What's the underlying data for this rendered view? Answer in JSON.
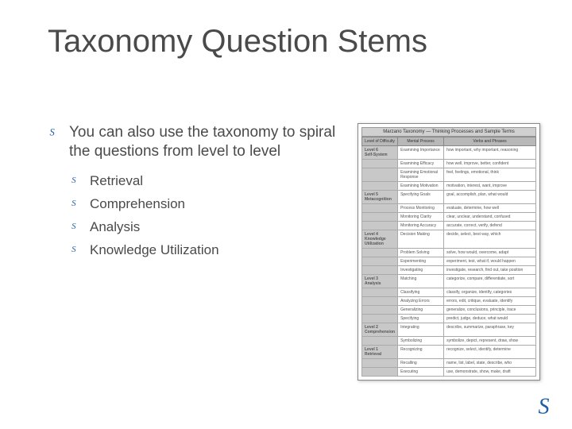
{
  "title": "Taxonomy Question Stems",
  "main_bullet": "You can also use the taxonomy to spiral the questions from level to level",
  "sub_bullets": [
    "Retrieval",
    "Comprehension",
    "Analysis",
    "Knowledge Utilization"
  ],
  "bullet_glyph": "S",
  "bullet_color": "#1d5ea8",
  "bullet_main_size": 15,
  "bullet_sub_size": 13,
  "text_color": "#4a4a4a",
  "title_fontsize": 40,
  "body_fontsize": 19,
  "sub_fontsize": 17,
  "background_color": "#ffffff",
  "chart": {
    "title": "Marzano Taxonomy — Thinking Processes and Sample Terms",
    "columns": [
      "Level of Difficulty",
      "Mental Process",
      "Verbs and Phrases"
    ],
    "rows": [
      {
        "level": "Level 6\nSelf-System",
        "proc": "Examining Importance",
        "verbs": "how important, why important, reasoning"
      },
      {
        "level": "",
        "proc": "Examining Efficacy",
        "verbs": "how well, improve, better, confident"
      },
      {
        "level": "",
        "proc": "Examining Emotional Response",
        "verbs": "feel, feelings, emotional, think"
      },
      {
        "level": "",
        "proc": "Examining Motivation",
        "verbs": "motivation, interest, want, improve"
      },
      {
        "level": "Level 5\nMetacognition",
        "proc": "Specifying Goals",
        "verbs": "goal, accomplish, plan, what would"
      },
      {
        "level": "",
        "proc": "Process Monitoring",
        "verbs": "evaluate, determine, how well"
      },
      {
        "level": "",
        "proc": "Monitoring Clarity",
        "verbs": "clear, unclear, understand, confused"
      },
      {
        "level": "",
        "proc": "Monitoring Accuracy",
        "verbs": "accurate, correct, verify, defend"
      },
      {
        "level": "Level 4\nKnowledge Utilization",
        "proc": "Decision Making",
        "verbs": "decide, select, best way, which"
      },
      {
        "level": "",
        "proc": "Problem Solving",
        "verbs": "solve, how would, overcome, adapt"
      },
      {
        "level": "",
        "proc": "Experimenting",
        "verbs": "experiment, test, what if, would happen"
      },
      {
        "level": "",
        "proc": "Investigating",
        "verbs": "investigate, research, find out, take position"
      },
      {
        "level": "Level 3\nAnalysis",
        "proc": "Matching",
        "verbs": "categorize, compare, differentiate, sort"
      },
      {
        "level": "",
        "proc": "Classifying",
        "verbs": "classify, organize, identify, categories"
      },
      {
        "level": "",
        "proc": "Analyzing Errors",
        "verbs": "errors, edit, critique, evaluate, identify"
      },
      {
        "level": "",
        "proc": "Generalizing",
        "verbs": "generalize, conclusions, principle, trace"
      },
      {
        "level": "",
        "proc": "Specifying",
        "verbs": "predict, judge, deduce, what would"
      },
      {
        "level": "Level 2\nComprehension",
        "proc": "Integrating",
        "verbs": "describe, summarize, paraphrase, key"
      },
      {
        "level": "",
        "proc": "Symbolizing",
        "verbs": "symbolize, depict, represent, draw, show"
      },
      {
        "level": "Level 1\nRetrieval",
        "proc": "Recognizing",
        "verbs": "recognize, select, identify, determine"
      },
      {
        "level": "",
        "proc": "Recalling",
        "verbs": "name, list, label, state, describe, who"
      },
      {
        "level": "",
        "proc": "Executing",
        "verbs": "use, demonstrate, show, make, draft"
      }
    ],
    "header_bg": "#b8b8b8",
    "level_bg": "#c8c8c8",
    "border_color": "#999999",
    "text_color": "#555555"
  },
  "flourish_color": "#1d5ea8"
}
